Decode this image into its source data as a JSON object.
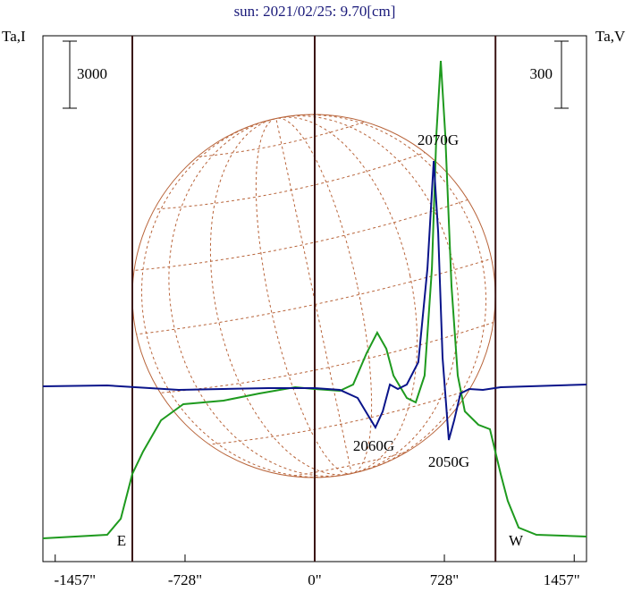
{
  "chart_data": {
    "type": "line",
    "title": "sun: 2021/02/25: 9.70[cm]",
    "y_label": "Ta,I",
    "y2_label": "Ta,V",
    "scale_bar": 3000,
    "scale_bar2": 300,
    "xlim": [
      -1526,
      1526
    ],
    "xticks": [
      {
        "value": -1457,
        "label": "-1457\""
      },
      {
        "value": -728,
        "label": "-728\""
      },
      {
        "value": 0,
        "label": "0\""
      },
      {
        "value": 728,
        "label": "728\""
      },
      {
        "value": 1457,
        "label": "1457\""
      }
    ],
    "ylim": [
      -1040,
      22480
    ],
    "y2lim": [
      -784,
      1568
    ],
    "markers": [
      -1024,
      0,
      1015
    ],
    "marker_labels": [
      "E",
      "W"
    ],
    "annotations": [
      "2070G",
      "2060G",
      "2050G"
    ],
    "series": [
      {
        "color": "#1e9a1e",
        "x": [
          -1526,
          -1165,
          -1089,
          -1024,
          -964,
          -863,
          -738,
          -512,
          -311,
          -110,
          0,
          141,
          216,
          291,
          351,
          402,
          442,
          517,
          567,
          617,
          658,
          683,
          708,
          733,
          768,
          803,
          843,
          919,
          984,
          1044,
          1084,
          1145,
          1245,
          1526
        ],
        "values": [
          0,
          160,
          880,
          2880,
          3880,
          5280,
          6000,
          6160,
          6480,
          6760,
          6680,
          6600,
          6880,
          8280,
          9200,
          8480,
          7280,
          6280,
          6080,
          7280,
          12080,
          18080,
          21360,
          18080,
          11280,
          7280,
          5680,
          5080,
          4880,
          2880,
          1680,
          480,
          160,
          80
        ]
      },
      {
        "color": "#0a148a",
        "axis": "y2",
        "x": [
          -1526,
          -1165,
          -763,
          -261,
          0,
          141,
          241,
          301,
          341,
          382,
          422,
          467,
          517,
          582,
          633,
          668,
          693,
          718,
          753,
          783,
          818,
          868,
          944,
          1044,
          1526
        ],
        "values": [
          0,
          4,
          -16,
          -8,
          -8,
          -16,
          -52,
          -132,
          -184,
          -112,
          8,
          -12,
          8,
          108,
          528,
          1008,
          688,
          128,
          -240,
          -152,
          -32,
          -12,
          -16,
          -4,
          8
        ]
      }
    ]
  }
}
